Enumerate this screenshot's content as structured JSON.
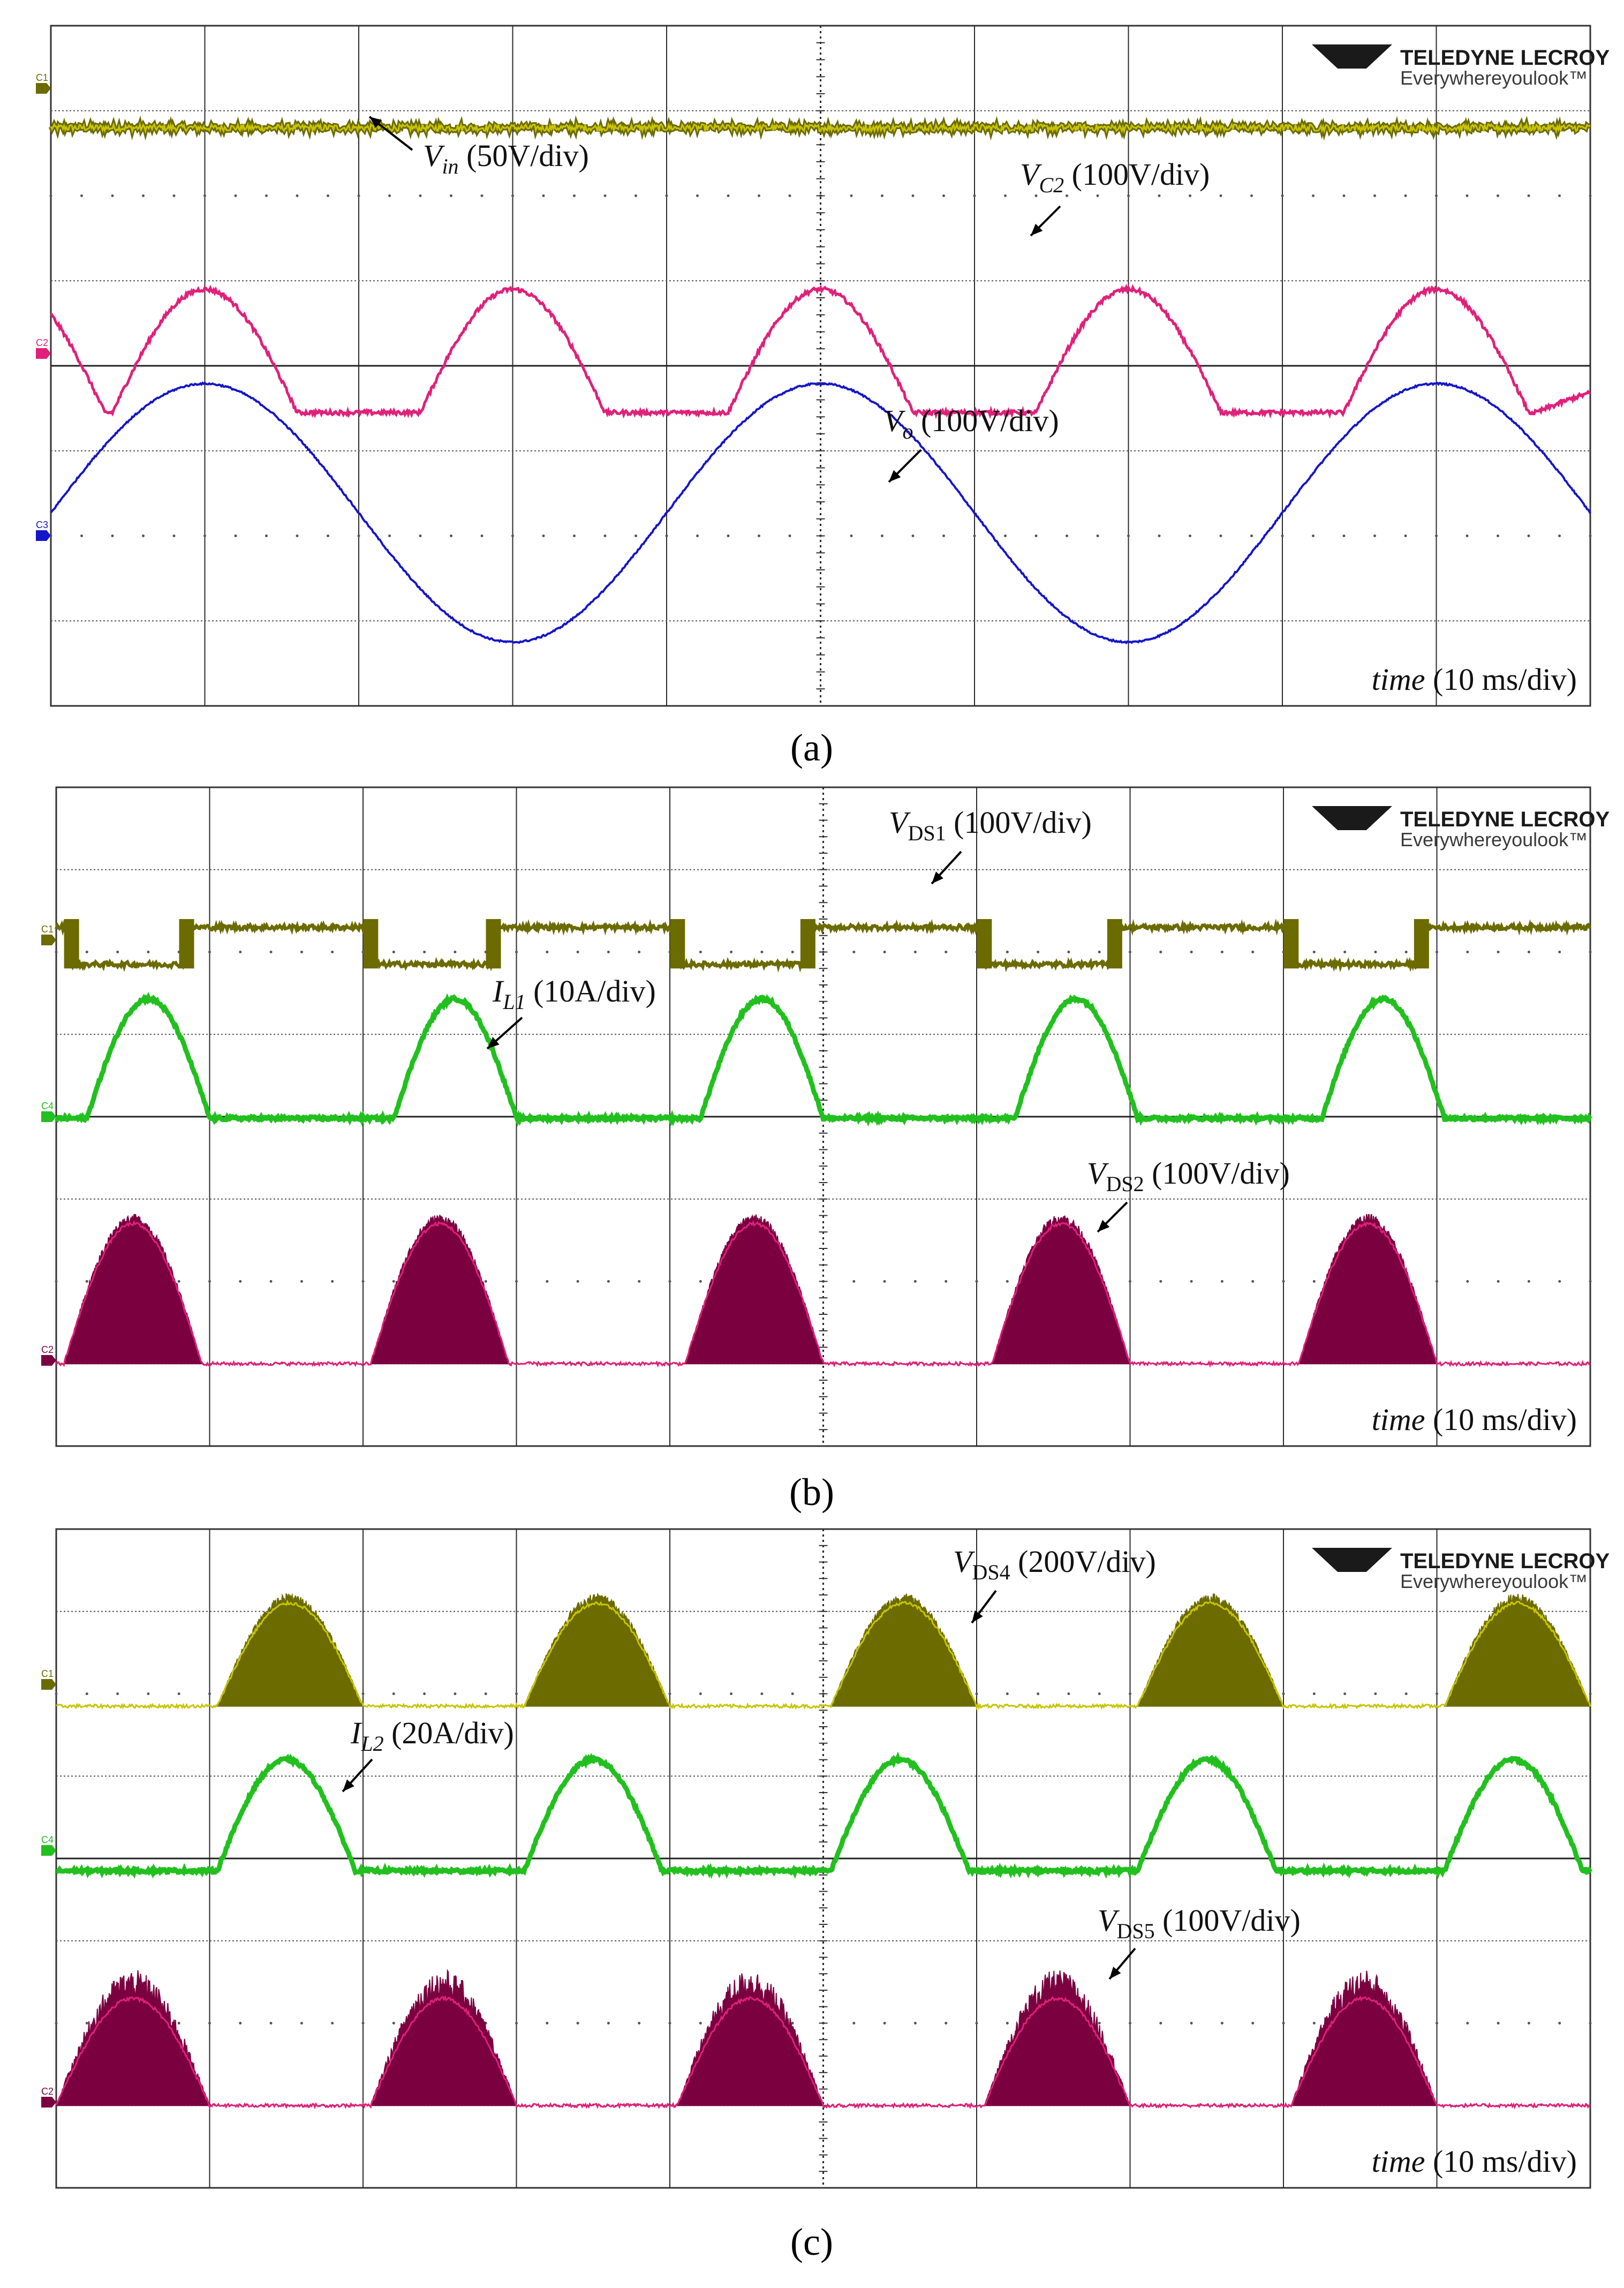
{
  "brand": {
    "name": "TELEDYNE LECROY",
    "tagline": "Everywhereyoulook™"
  },
  "colors": {
    "ch1": "#6b6b00",
    "ch1_line": "#c9c400",
    "ch2_fill": "#7a0040",
    "ch2_line": "#e0207a",
    "ch3": "#1515c8",
    "ch4": "#22c01f",
    "grid": "#2a2a2a"
  },
  "chart_data": [
    {
      "panel": "a",
      "caption": "(a)",
      "type": "line",
      "divisions": {
        "x": 10,
        "y": 8
      },
      "time_label": "time (10 ms/div)",
      "channel_markers": [
        "C1",
        "C2",
        "C3"
      ],
      "series": [
        {
          "name": "Vin",
          "label_main": "V",
          "label_sub": "in",
          "label_rest": " (50V/div)",
          "channel": "C1",
          "color_key": "ch1",
          "shape": "flat",
          "y_div": 6.8,
          "noise": 0.08
        },
        {
          "name": "VC2",
          "label_main": "V",
          "label_sub": "C2",
          "label_rest": " (100V/div)",
          "channel": "C2",
          "color_key": "ch2_line",
          "shape": "halfsine",
          "period_div": 2,
          "cycles_div": [
            0.4,
            2.4,
            4.4,
            6.4,
            8.4
          ],
          "base_div": 3.45,
          "amp_div": 1.45
        },
        {
          "name": "Vo",
          "label_main": "V",
          "label_sub": "o",
          "label_rest": " (100V/div)",
          "channel": "C3",
          "color_key": "ch3",
          "shape": "sine",
          "period_div": 4,
          "phase_div": 1,
          "center_div": 2.27,
          "amp_div": 1.52
        }
      ]
    },
    {
      "panel": "b",
      "caption": "(b)",
      "type": "line",
      "divisions": {
        "x": 10,
        "y": 8
      },
      "time_label": "time (10 ms/div)",
      "channel_markers": [
        "C1",
        "C4",
        "C2"
      ],
      "series": [
        {
          "name": "VDS1",
          "label_main": "V",
          "label_sub": "DS1",
          "label_rest": " (100V/div)",
          "channel": "C1",
          "color_key": "ch1",
          "shape": "square",
          "high_div": 6.3,
          "low_div": 5.85,
          "low_intervals_div": [
            [
              0.1,
              0.85
            ],
            [
              2.05,
              2.85
            ],
            [
              4.05,
              4.9
            ],
            [
              6.05,
              6.9
            ],
            [
              8.05,
              8.9
            ]
          ]
        },
        {
          "name": "IL1",
          "label_main": "I",
          "label_sub": "L1",
          "label_rest": " (10A/div)",
          "channel": "C4",
          "color_key": "ch4",
          "shape": "humps",
          "base_div": 3.98,
          "amp_div": 1.45,
          "humps_div": [
            [
              0.2,
              1.0
            ],
            [
              2.2,
              3.0
            ],
            [
              4.2,
              5.0
            ],
            [
              6.25,
              7.05
            ],
            [
              8.25,
              9.05
            ]
          ]
        },
        {
          "name": "VDS2",
          "label_main": "V",
          "label_sub": "DS2",
          "label_rest": " (100V/div)",
          "channel": "C2",
          "color_key": "ch2_fill",
          "shape": "filledhumps",
          "base_div": 1.0,
          "amp_div": 1.7,
          "humps_div": [
            [
              0.05,
              0.95
            ],
            [
              2.05,
              2.95
            ],
            [
              4.1,
              5.0
            ],
            [
              6.1,
              7.0
            ],
            [
              8.1,
              9.0
            ]
          ]
        }
      ]
    },
    {
      "panel": "c",
      "caption": "(c)",
      "type": "line",
      "divisions": {
        "x": 10,
        "y": 8
      },
      "time_label": "time (10 ms/div)",
      "channel_markers": [
        "C1",
        "C4",
        "C2"
      ],
      "series": [
        {
          "name": "VDS4",
          "label_main": "V",
          "label_sub": "DS4",
          "label_rest": " (200V/div)",
          "channel": "C1",
          "color_key": "ch1",
          "shape": "filledhumps",
          "base_div": 5.85,
          "amp_div": 1.25,
          "humps_div": [
            [
              1.05,
              2.0
            ],
            [
              3.05,
              4.0
            ],
            [
              5.05,
              6.0
            ],
            [
              7.05,
              8.0
            ],
            [
              9.05,
              10.0
            ]
          ]
        },
        {
          "name": "IL2",
          "label_main": "I",
          "label_sub": "L2",
          "label_rest": " (20A/div)",
          "channel": "C4",
          "color_key": "ch4",
          "shape": "humps",
          "base_div": 3.85,
          "amp_div": 1.35,
          "humps_div": [
            [
              1.05,
              1.95
            ],
            [
              3.05,
              3.95
            ],
            [
              5.05,
              5.95
            ],
            [
              7.05,
              7.95
            ],
            [
              9.05,
              9.95
            ]
          ]
        },
        {
          "name": "VDS5",
          "label_main": "V",
          "label_sub": "DS5",
          "label_rest": " (100V/div)",
          "channel": "C2",
          "color_key": "ch2_fill",
          "shape": "filledhumps",
          "base_div": 1.0,
          "amp_div": 1.3,
          "spiky": true,
          "humps_div": [
            [
              0.0,
              1.0
            ],
            [
              2.05,
              3.0
            ],
            [
              4.05,
              5.0
            ],
            [
              6.05,
              7.0
            ],
            [
              8.05,
              9.0
            ]
          ]
        }
      ]
    }
  ]
}
